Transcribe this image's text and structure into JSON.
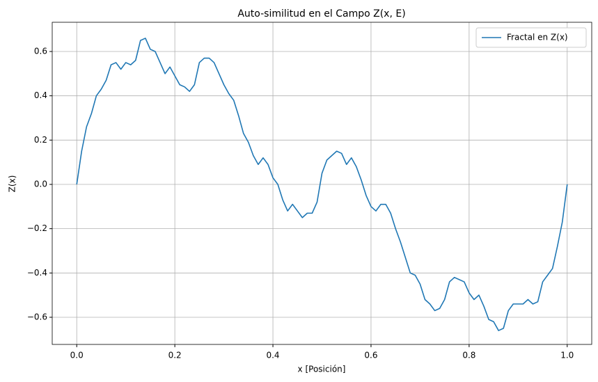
{
  "chart_data": {
    "type": "line",
    "title": "Auto-similitud en el Campo Z(x, E)",
    "x_label": "x [Posición]",
    "y_label": "Z(x)",
    "x": [
      0,
      0.01,
      0.02,
      0.03,
      0.04,
      0.05,
      0.06,
      0.07,
      0.08,
      0.09,
      0.1,
      0.11,
      0.12,
      0.13,
      0.14,
      0.15,
      0.16,
      0.17,
      0.18,
      0.19,
      0.2,
      0.21,
      0.22,
      0.23,
      0.24,
      0.25,
      0.26,
      0.27,
      0.28,
      0.29,
      0.3,
      0.31,
      0.32,
      0.33,
      0.34,
      0.35,
      0.36,
      0.37,
      0.38,
      0.39,
      0.4,
      0.41,
      0.42,
      0.43,
      0.44,
      0.45,
      0.46,
      0.47,
      0.48,
      0.49,
      0.5,
      0.51,
      0.52,
      0.53,
      0.54,
      0.55,
      0.56,
      0.57,
      0.58,
      0.59,
      0.6,
      0.61,
      0.62,
      0.63,
      0.64,
      0.65,
      0.66,
      0.67,
      0.68,
      0.69,
      0.7,
      0.71,
      0.72,
      0.73,
      0.74,
      0.75,
      0.76,
      0.77,
      0.78,
      0.79,
      0.8,
      0.81,
      0.82,
      0.83,
      0.84,
      0.85,
      0.86,
      0.87,
      0.88,
      0.89,
      0.9,
      0.91,
      0.92,
      0.93,
      0.94,
      0.95,
      0.96,
      0.97,
      0.98,
      0.99,
      1
    ],
    "series": [
      {
        "name": "Fractal en Z(x)",
        "color": "#1f77b4",
        "values": [
          0,
          0.15,
          0.26,
          0.32,
          0.4,
          0.43,
          0.47,
          0.54,
          0.55,
          0.52,
          0.55,
          0.54,
          0.56,
          0.65,
          0.66,
          0.61,
          0.6,
          0.55,
          0.5,
          0.53,
          0.49,
          0.45,
          0.44,
          0.42,
          0.45,
          0.55,
          0.57,
          0.57,
          0.55,
          0.5,
          0.45,
          0.41,
          0.38,
          0.31,
          0.23,
          0.19,
          0.13,
          0.09,
          0.12,
          0.09,
          0.03,
          0,
          -0.07,
          -0.12,
          -0.09,
          -0.12,
          -0.15,
          -0.13,
          -0.13,
          -0.08,
          0.05,
          0.11,
          0.13,
          0.15,
          0.14,
          0.09,
          0.12,
          0.08,
          0.02,
          -0.05,
          -0.1,
          -0.12,
          -0.09,
          -0.09,
          -0.13,
          -0.2,
          -0.26,
          -0.33,
          -0.4,
          -0.41,
          -0.45,
          -0.52,
          -0.54,
          -0.57,
          -0.56,
          -0.52,
          -0.44,
          -0.42,
          -0.43,
          -0.44,
          -0.49,
          -0.52,
          -0.5,
          -0.55,
          -0.61,
          -0.62,
          -0.66,
          -0.65,
          -0.57,
          -0.54,
          -0.54,
          -0.54,
          -0.52,
          -0.54,
          -0.53,
          -0.44,
          -0.41,
          -0.38,
          -0.28,
          -0.17,
          0
        ]
      }
    ],
    "xlim": [
      -0.05,
      1.05
    ],
    "ylim": [
      -0.7226,
      0.732
    ],
    "xticks": [
      {
        "value": 0,
        "label": "0.0"
      },
      0.2,
      0.4,
      0.6,
      0.8,
      {
        "value": 1,
        "label": "1.0"
      }
    ],
    "yticks": [
      {
        "value": -0.6,
        "label": "−0.6"
      },
      {
        "value": -0.4,
        "label": "−0.4"
      },
      {
        "value": -0.2,
        "label": "−0.2"
      },
      {
        "value": 0,
        "label": "0.0"
      },
      0.2,
      0.4,
      0.6
    ],
    "grid": true,
    "legend": "upper right"
  }
}
